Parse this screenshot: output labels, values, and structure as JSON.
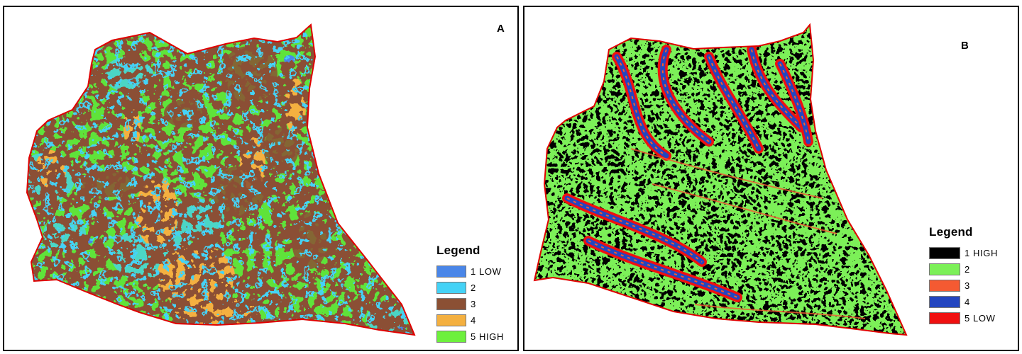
{
  "panels": [
    {
      "id": "A",
      "letter": "A",
      "boundary_color": "#e00000",
      "base_color": "#5fe33a",
      "legend": {
        "title": "Legend",
        "classes": [
          {
            "label": "1 LOW",
            "color": "#4a86e8"
          },
          {
            "label": "2",
            "color": "#44d2f6"
          },
          {
            "label": "3",
            "color": "#8b5034"
          },
          {
            "label": "4",
            "color": "#f4b040"
          },
          {
            "label": "5 HIGH",
            "color": "#6df03c"
          }
        ]
      }
    },
    {
      "id": "B",
      "letter": "B",
      "boundary_color": "#e00000",
      "base_color": "#000000",
      "legend": {
        "title": "Legend",
        "classes": [
          {
            "label": "1 HIGH",
            "color": "#000000"
          },
          {
            "label": "2",
            "color": "#7cf058"
          },
          {
            "label": "3",
            "color": "#f45a32"
          },
          {
            "label": "4",
            "color": "#2345c0"
          },
          {
            "label": "5 LOW",
            "color": "#f01010"
          }
        ]
      }
    }
  ]
}
